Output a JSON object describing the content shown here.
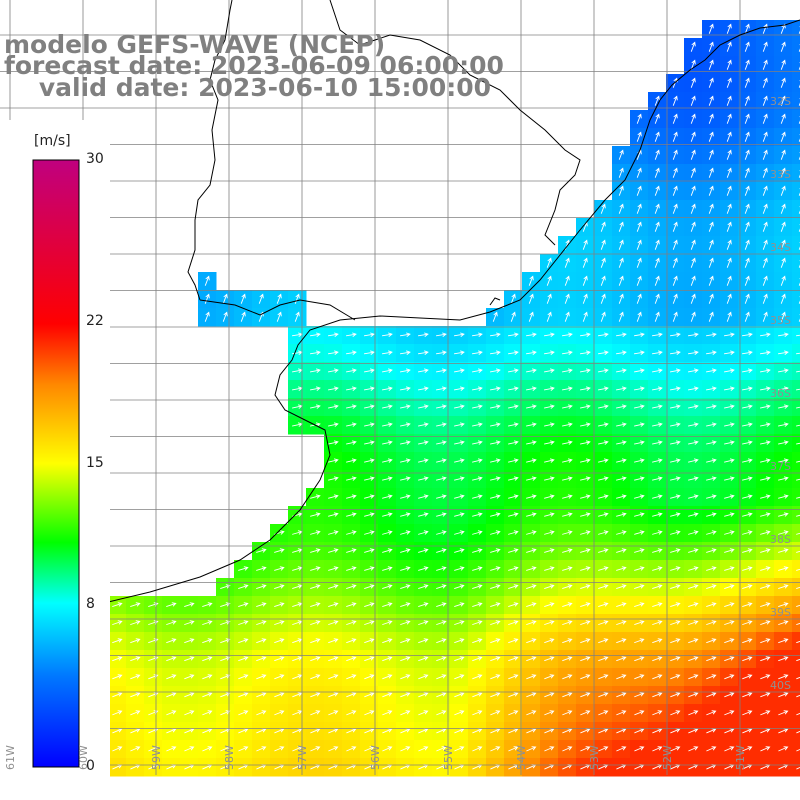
{
  "title": {
    "line1": "modelo GEFS-WAVE (NCEP)",
    "line2": "forecast date: 2023-06-09 06:00:00",
    "line3": "    valid date: 2023-06-10 15:00:00"
  },
  "legend": {
    "unit": "[m/s]",
    "ticks": [
      {
        "label": "30",
        "value": 30
      },
      {
        "label": "22",
        "value": 22
      },
      {
        "label": "15",
        "value": 15
      },
      {
        "label": "8",
        "value": 8
      },
      {
        "label": "0",
        "value": 0
      }
    ],
    "colors": [
      "#0000ff",
      "#00c8ff",
      "#00ffff",
      "#00ff00",
      "#ffff00",
      "#ff8800",
      "#ff0000",
      "#c0007f"
    ]
  },
  "grid": {
    "lat_labels": [
      "32S",
      "33S",
      "34S",
      "35S",
      "36S",
      "37S",
      "38S",
      "39S",
      "40S"
    ],
    "lon_labels": [
      "61W",
      "60W",
      "59W",
      "58W",
      "57W",
      "56W",
      "55W",
      "54W",
      "53W",
      "52W",
      "51W"
    ]
  },
  "colors": {
    "land": "#ffffff",
    "grid": "#808080",
    "coast": "#000000",
    "arrow": "#ffffff"
  }
}
